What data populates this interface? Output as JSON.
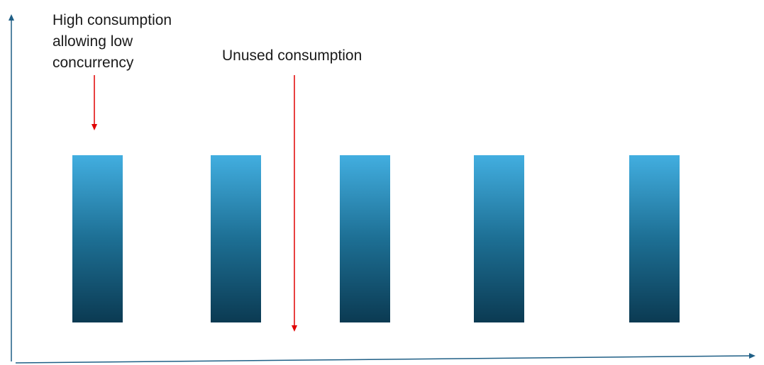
{
  "annotations": [
    {
      "lines": [
        "High consumption",
        "allowing low",
        "concurrency"
      ]
    },
    {
      "lines": [
        "Unused consumption"
      ]
    }
  ]
}
